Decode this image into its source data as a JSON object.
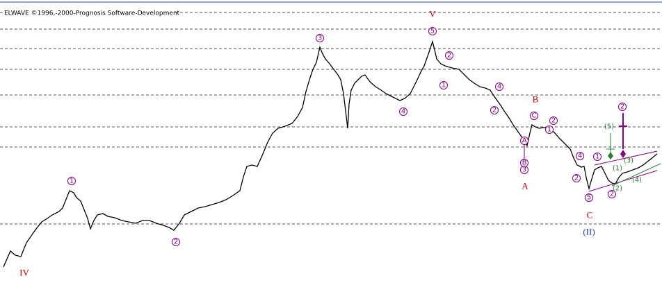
{
  "header": {
    "title": "ELWAVE ©1996,-2000-Prognosis Software-Development"
  },
  "annotations": [
    {
      "text": "IV",
      "color": "#c00000"
    },
    {
      "text": "V",
      "color": "#c00000"
    },
    {
      "text": "A",
      "color": "#c00000"
    },
    {
      "text": "B",
      "color": "#c00000"
    },
    {
      "text": "C",
      "color": "#c00000"
    },
    {
      "text": "(II)",
      "color": "#1f3f9f"
    },
    {
      "text": "1",
      "color": "#800080"
    },
    {
      "text": "2",
      "color": "#800080"
    },
    {
      "text": "3",
      "color": "#800080"
    },
    {
      "text": "4",
      "color": "#800080"
    },
    {
      "text": "5",
      "color": "#800080"
    },
    {
      "text": "1",
      "color": "#800080"
    },
    {
      "text": "2",
      "color": "#800080"
    },
    {
      "text": "4",
      "color": "#800080"
    },
    {
      "text": "2",
      "color": "#800080"
    },
    {
      "text": "C",
      "color": "#800080"
    },
    {
      "text": "2",
      "color": "#800080"
    },
    {
      "text": "1",
      "color": "#800080"
    },
    {
      "text": "A",
      "color": "#800080"
    },
    {
      "text": "B",
      "color": "#800080"
    },
    {
      "text": "3",
      "color": "#800080"
    },
    {
      "text": "4",
      "color": "#800080"
    },
    {
      "text": "2",
      "color": "#800080"
    },
    {
      "text": "5",
      "color": "#800080"
    },
    {
      "text": "1",
      "color": "#800080"
    },
    {
      "text": "2",
      "color": "#800080"
    },
    {
      "text": "2",
      "color": "#800080"
    },
    {
      "text": "(5)",
      "color": "#2e7d32"
    },
    {
      "text": "(1)",
      "color": "#2e7d32"
    },
    {
      "text": "(3)",
      "color": "#2e7d32"
    },
    {
      "text": "(2)",
      "color": "#2e7d32"
    },
    {
      "text": "(4)",
      "color": "#2e7d32"
    }
  ]
}
